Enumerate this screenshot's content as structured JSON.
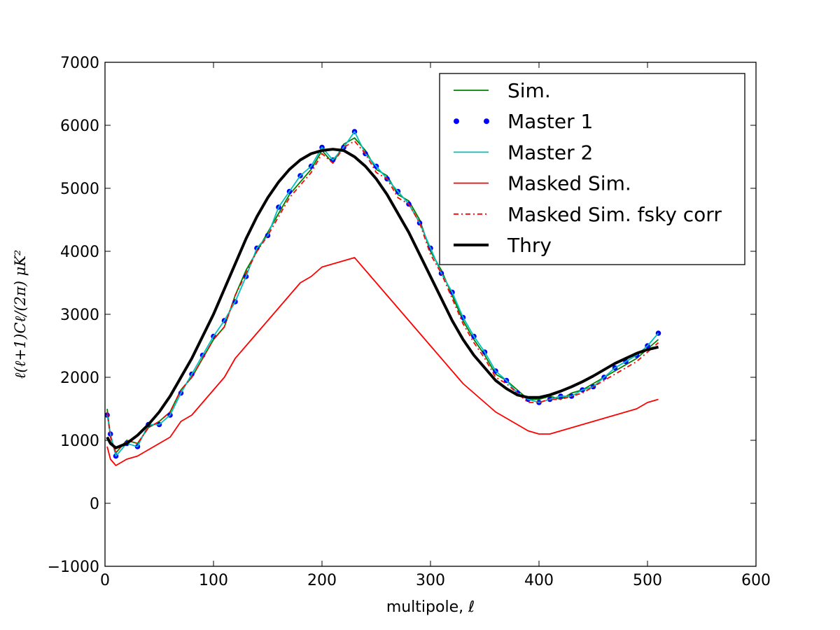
{
  "chart_data": {
    "type": "line",
    "title": "",
    "xlabel": "multipole, ℓ",
    "ylabel": "ℓ(ℓ+1)Cℓ/(2π) μK²",
    "xlim": [
      0,
      600
    ],
    "ylim": [
      -1000,
      7000
    ],
    "xticks": [
      "0",
      "100",
      "200",
      "300",
      "400",
      "500",
      "600"
    ],
    "yticks": [
      "−1000",
      "0",
      "1000",
      "2000",
      "3000",
      "4000",
      "5000",
      "6000",
      "7000"
    ],
    "grid": false,
    "legend_position": "top-right",
    "x": [
      2,
      5,
      10,
      20,
      30,
      40,
      50,
      60,
      70,
      80,
      90,
      100,
      110,
      120,
      130,
      140,
      150,
      160,
      170,
      180,
      190,
      200,
      210,
      220,
      230,
      240,
      250,
      260,
      270,
      280,
      290,
      300,
      310,
      320,
      330,
      340,
      350,
      360,
      370,
      380,
      390,
      400,
      410,
      420,
      430,
      440,
      450,
      460,
      470,
      480,
      490,
      500,
      510
    ],
    "series": [
      {
        "name": "Sim.",
        "color": "#008000",
        "style": "solid",
        "values": [
          1500,
          1050,
          800,
          1000,
          950,
          1200,
          1300,
          1450,
          1800,
          2000,
          2300,
          2600,
          2800,
          3300,
          3700,
          4000,
          4300,
          4600,
          4900,
          5100,
          5300,
          5600,
          5400,
          5700,
          5800,
          5600,
          5300,
          5200,
          4900,
          4800,
          4500,
          4000,
          3700,
          3300,
          2900,
          2600,
          2350,
          2050,
          1950,
          1800,
          1650,
          1650,
          1700,
          1650,
          1750,
          1800,
          1900,
          2000,
          2100,
          2200,
          2300,
          2450,
          2600
        ]
      },
      {
        "name": "Master 1",
        "color": "#0000ff",
        "style": "dots",
        "values": [
          1400,
          1100,
          750,
          950,
          900,
          1250,
          1250,
          1400,
          1750,
          2050,
          2350,
          2650,
          2900,
          3200,
          3600,
          4050,
          4250,
          4700,
          4950,
          5200,
          5350,
          5650,
          5450,
          5650,
          5900,
          5550,
          5350,
          5150,
          4950,
          4750,
          4450,
          4050,
          3650,
          3350,
          2950,
          2650,
          2400,
          2100,
          1950,
          1750,
          1650,
          1600,
          1650,
          1700,
          1700,
          1800,
          1850,
          2000,
          2150,
          2250,
          2350,
          2500,
          2700
        ]
      },
      {
        "name": "Master 2",
        "color": "#00bfbf",
        "style": "solid",
        "values": [
          1400,
          1100,
          750,
          950,
          900,
          1250,
          1250,
          1400,
          1750,
          2050,
          2350,
          2650,
          2900,
          3200,
          3600,
          4050,
          4250,
          4700,
          4950,
          5200,
          5350,
          5650,
          5450,
          5650,
          5900,
          5550,
          5350,
          5150,
          4950,
          4750,
          4450,
          4050,
          3650,
          3350,
          2950,
          2650,
          2400,
          2100,
          1950,
          1750,
          1650,
          1600,
          1650,
          1700,
          1700,
          1800,
          1850,
          2000,
          2150,
          2250,
          2350,
          2500,
          2700
        ]
      },
      {
        "name": "Masked Sim.",
        "color": "#ff0000",
        "style": "solid",
        "values": [
          900,
          700,
          600,
          700,
          750,
          850,
          950,
          1050,
          1300,
          1400,
          1600,
          1800,
          2000,
          2300,
          2500,
          2700,
          2900,
          3100,
          3300,
          3500,
          3600,
          3750,
          3800,
          3850,
          3900,
          3700,
          3500,
          3300,
          3100,
          2900,
          2700,
          2500,
          2300,
          2100,
          1900,
          1750,
          1600,
          1450,
          1350,
          1250,
          1150,
          1100,
          1100,
          1150,
          1200,
          1250,
          1300,
          1350,
          1400,
          1450,
          1500,
          1600,
          1650
        ]
      },
      {
        "name": "Masked Sim. fsky corr",
        "color": "#ff0000",
        "style": "dashdot",
        "values": [
          1450,
          1050,
          800,
          1000,
          950,
          1200,
          1300,
          1450,
          1800,
          2000,
          2300,
          2600,
          2800,
          3300,
          3650,
          4000,
          4250,
          4550,
          4850,
          5050,
          5250,
          5550,
          5400,
          5650,
          5750,
          5550,
          5250,
          5150,
          4850,
          4750,
          4450,
          3950,
          3650,
          3250,
          2850,
          2550,
          2300,
          2000,
          1900,
          1750,
          1600,
          1600,
          1650,
          1650,
          1700,
          1750,
          1850,
          1950,
          2050,
          2150,
          2250,
          2400,
          2550
        ]
      },
      {
        "name": "Thry",
        "color": "#000000",
        "style": "thick",
        "values": [
          1050,
          950,
          880,
          950,
          1080,
          1250,
          1450,
          1700,
          2000,
          2300,
          2650,
          3000,
          3400,
          3800,
          4200,
          4550,
          4850,
          5100,
          5300,
          5450,
          5550,
          5600,
          5620,
          5600,
          5500,
          5350,
          5150,
          4900,
          4600,
          4300,
          3950,
          3600,
          3250,
          2900,
          2600,
          2350,
          2150,
          1950,
          1820,
          1720,
          1680,
          1680,
          1720,
          1780,
          1850,
          1930,
          2020,
          2120,
          2220,
          2300,
          2380,
          2440,
          2480
        ]
      }
    ]
  }
}
